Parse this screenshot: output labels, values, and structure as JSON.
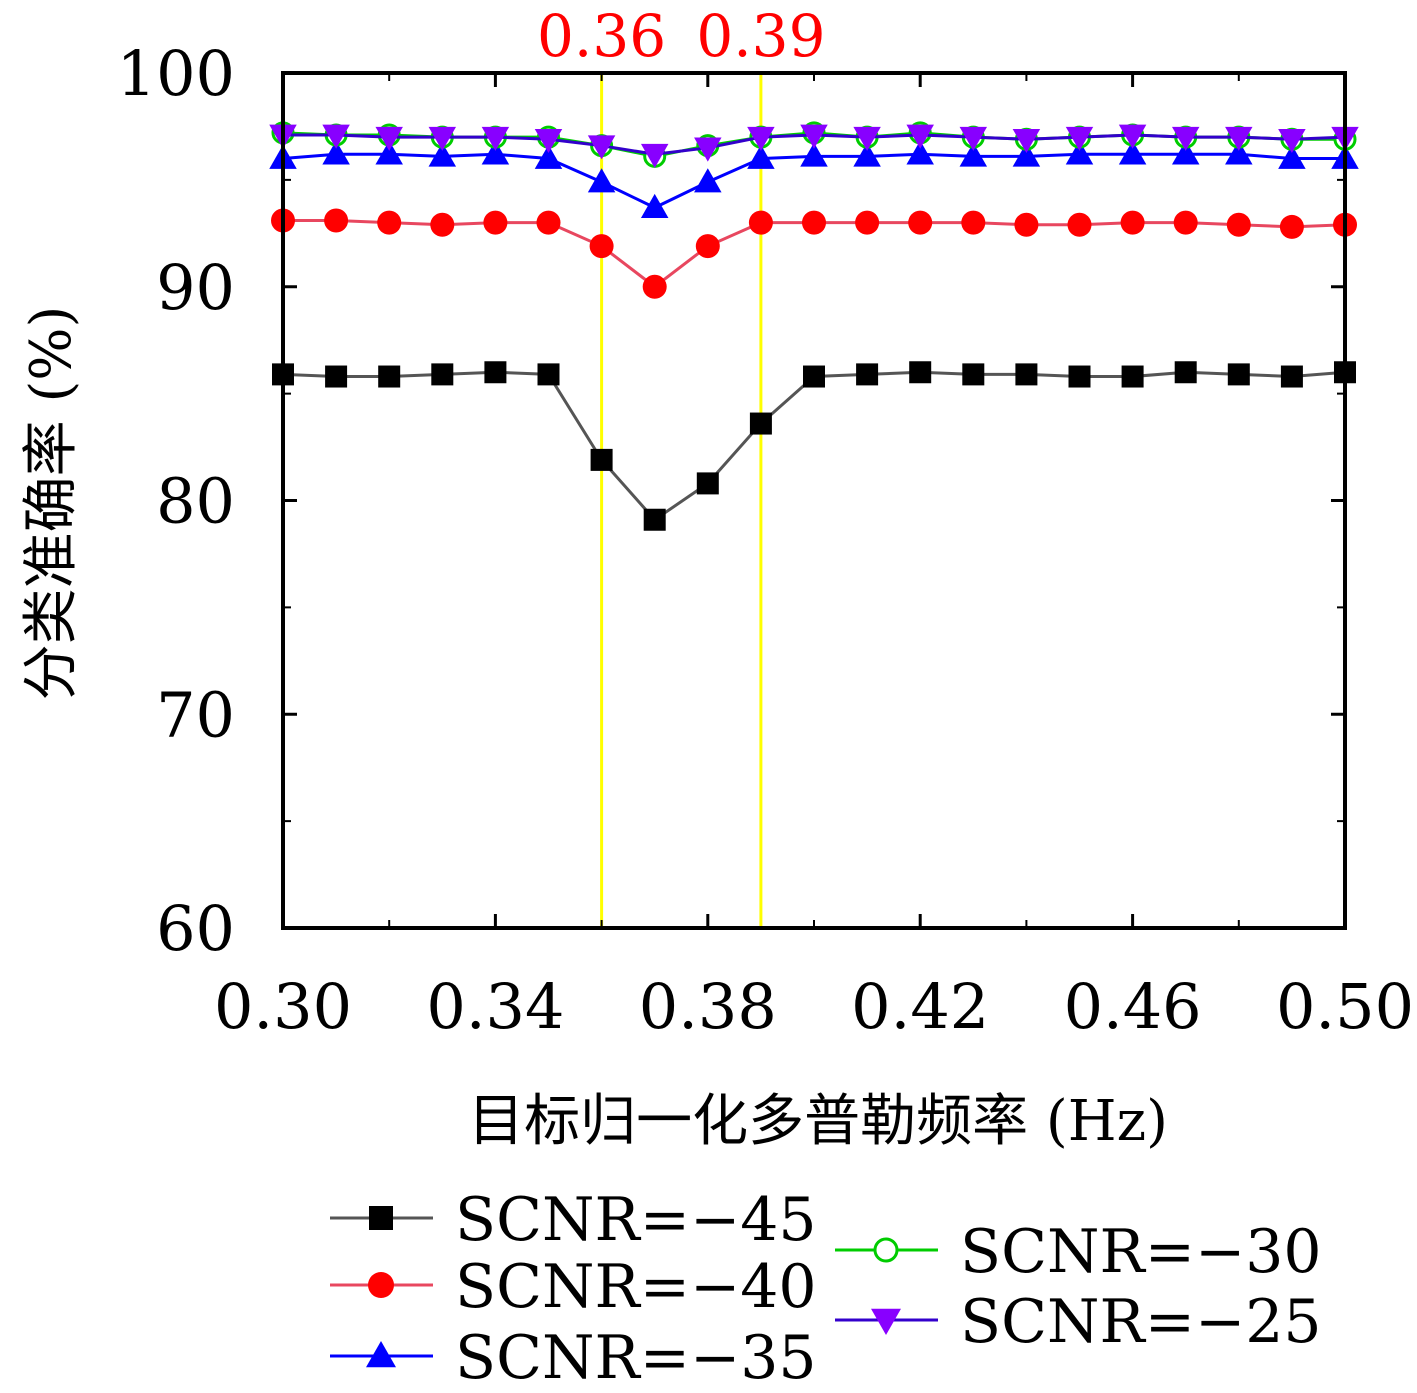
{
  "chart_data": {
    "type": "line",
    "title": "",
    "xlabel": "目标归一化多普勒频率 (Hz)",
    "ylabel": "分类准确率 (%)",
    "xlim": [
      0.3,
      0.5
    ],
    "ylim": [
      60,
      100
    ],
    "x_ticks": [
      0.3,
      0.34,
      0.38,
      0.42,
      0.46,
      0.5
    ],
    "x_tick_labels": [
      "0.30",
      "0.34",
      "0.38",
      "0.42",
      "0.46",
      "0.50"
    ],
    "y_ticks": [
      60,
      70,
      80,
      90,
      100
    ],
    "y_tick_labels": [
      "60",
      "70",
      "80",
      "90",
      "100"
    ],
    "grid": false,
    "legend_position": "bottom",
    "x": [
      0.3,
      0.31,
      0.32,
      0.33,
      0.34,
      0.35,
      0.36,
      0.37,
      0.38,
      0.39,
      0.4,
      0.41,
      0.42,
      0.43,
      0.44,
      0.45,
      0.46,
      0.47,
      0.48,
      0.49,
      0.5
    ],
    "series": [
      {
        "name": "SCNR=−45",
        "color": "#000000",
        "line_color": "#555555",
        "marker": "square",
        "values": [
          85.9,
          85.8,
          85.8,
          85.9,
          86.0,
          85.9,
          81.9,
          79.1,
          80.8,
          83.6,
          85.8,
          85.9,
          86.0,
          85.9,
          85.9,
          85.8,
          85.8,
          86.0,
          85.9,
          85.8,
          86.0
        ]
      },
      {
        "name": "SCNR=−40",
        "color": "#ff0000",
        "line_color": "#e8475f",
        "marker": "circle",
        "values": [
          93.1,
          93.1,
          93.0,
          92.9,
          93.0,
          93.0,
          91.9,
          90.0,
          91.9,
          93.0,
          93.0,
          93.0,
          93.0,
          93.0,
          92.9,
          92.9,
          93.0,
          93.0,
          92.9,
          92.8,
          92.9
        ]
      },
      {
        "name": "SCNR=−35",
        "color": "#0000ff",
        "line_color": "#0000ff",
        "marker": "triangle-up",
        "values": [
          96.0,
          96.2,
          96.2,
          96.1,
          96.2,
          96.0,
          94.9,
          93.7,
          94.9,
          96.0,
          96.1,
          96.1,
          96.2,
          96.1,
          96.1,
          96.2,
          96.2,
          96.2,
          96.2,
          96.0,
          96.0
        ]
      },
      {
        "name": "SCNR=−30",
        "color": "#00cc00",
        "line_color": "#00cc00",
        "marker": "circle-open",
        "values": [
          97.2,
          97.1,
          97.1,
          97.0,
          97.0,
          97.0,
          96.6,
          96.1,
          96.6,
          97.0,
          97.2,
          97.0,
          97.2,
          97.0,
          96.9,
          97.0,
          97.1,
          97.0,
          97.0,
          96.9,
          96.9
        ]
      },
      {
        "name": "SCNR=−25",
        "color": "#8800ff",
        "line_color": "#3300cc",
        "marker": "triangle-down",
        "values": [
          97.1,
          97.1,
          97.0,
          97.0,
          97.0,
          96.9,
          96.6,
          96.2,
          96.5,
          97.0,
          97.1,
          97.0,
          97.1,
          97.0,
          96.9,
          97.0,
          97.1,
          97.0,
          97.0,
          96.9,
          97.0
        ]
      }
    ],
    "annotations": [
      {
        "label": "0.36",
        "x": 0.36,
        "line_color": "#ffff00",
        "text_color": "#ff0000"
      },
      {
        "label": "0.39",
        "x": 0.39,
        "line_color": "#ffff00",
        "text_color": "#ff0000"
      }
    ]
  }
}
